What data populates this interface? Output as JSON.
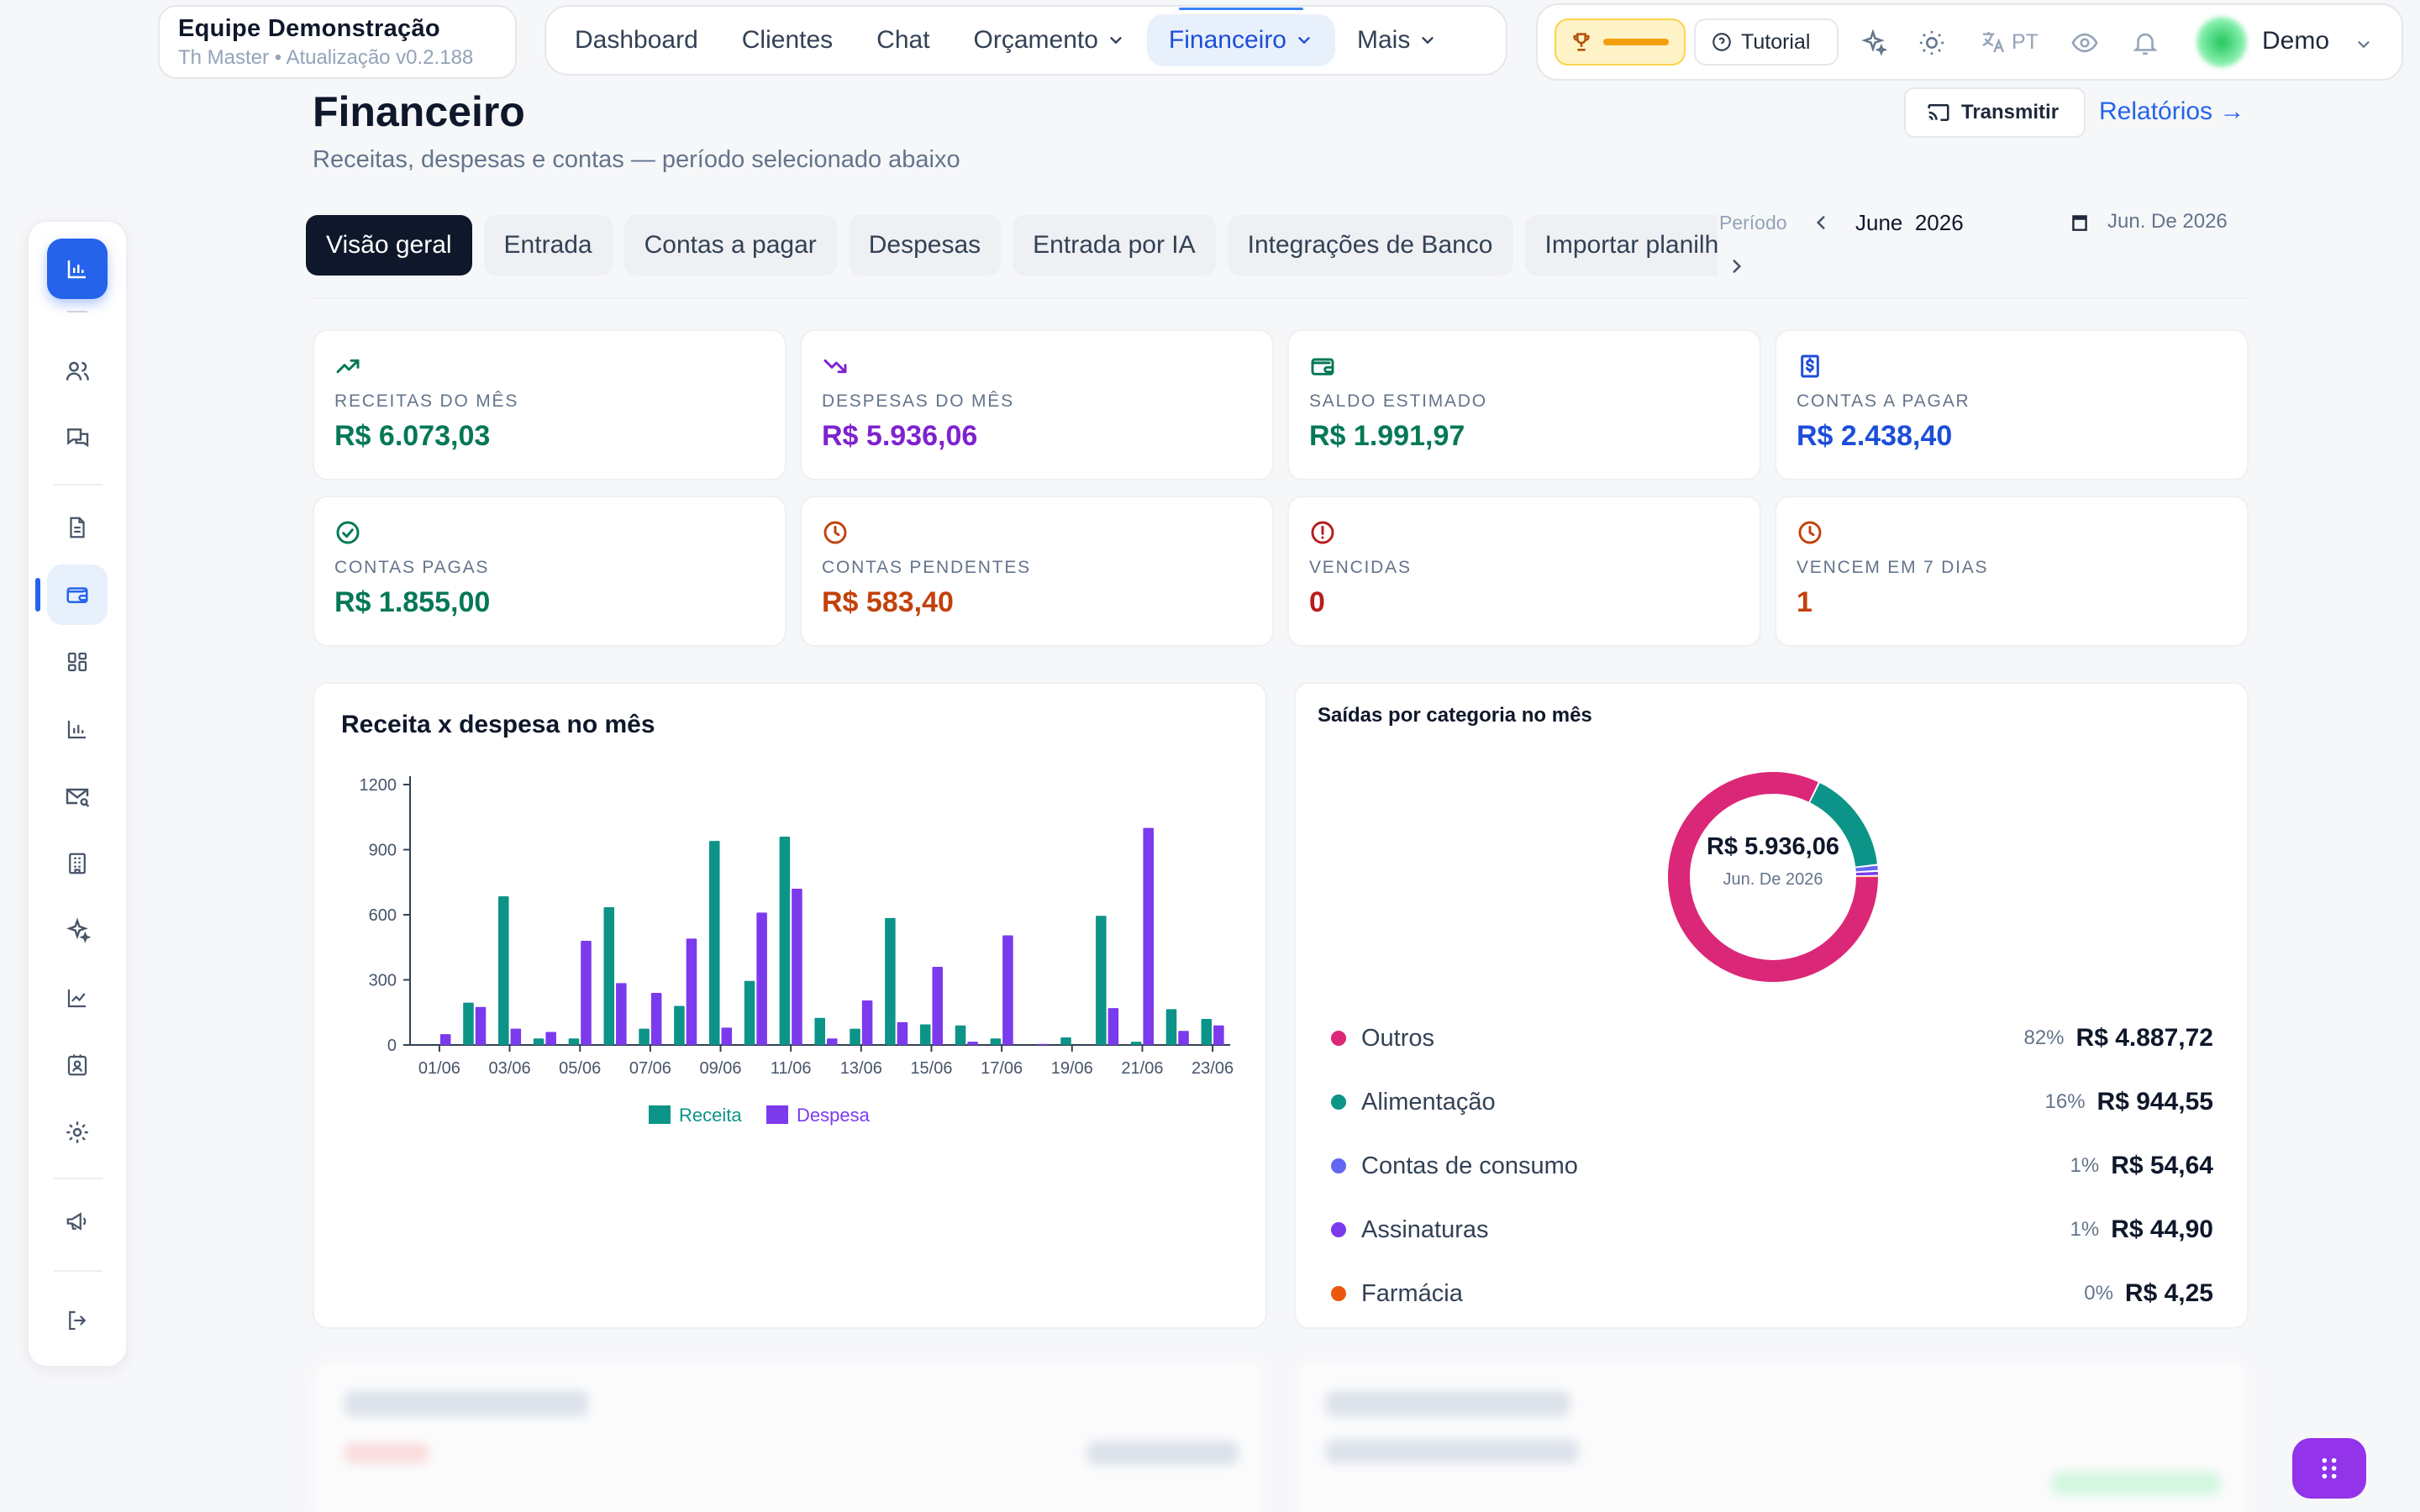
{
  "brand": {
    "name": "Equipe Demonstração",
    "subtitle": "Th Master • Atualização v0.2.188"
  },
  "nav": {
    "items": [
      {
        "label": "Dashboard",
        "dropdown": false
      },
      {
        "label": "Clientes",
        "dropdown": false
      },
      {
        "label": "Chat",
        "dropdown": false
      },
      {
        "label": "Orçamento",
        "dropdown": true
      },
      {
        "label": "Financeiro",
        "dropdown": true,
        "active": true
      },
      {
        "label": "Mais",
        "dropdown": true
      }
    ]
  },
  "toolbar": {
    "tutorial": "Tutorial",
    "lang": "PT",
    "user": "Demo"
  },
  "page": {
    "title": "Financeiro",
    "subtitle": "Receitas, despesas e contas — período selecionado abaixo",
    "transmit": "Transmitir",
    "reports": "Relatórios →"
  },
  "tabs": [
    "Visão geral",
    "Entrada",
    "Contas a pagar",
    "Despesas",
    "Entrada por IA",
    "Integrações de Banco",
    "Importar planilha"
  ],
  "period": {
    "label": "Período",
    "value": "June  2026",
    "date": "Jun. De 2026"
  },
  "stats": [
    {
      "label": "RECEITAS DO MÊS",
      "value": "R$ 6.073,03",
      "color": "#047857",
      "icon": "trending-up-icon"
    },
    {
      "label": "DESPESAS DO MÊS",
      "value": "R$ 5.936,06",
      "color": "#7e22ce",
      "icon": "trending-down-icon"
    },
    {
      "label": "SALDO ESTIMADO",
      "value": "R$ 1.991,97",
      "color": "#047857",
      "icon": "wallet-icon"
    },
    {
      "label": "CONTAS A PAGAR",
      "value": "R$ 2.438,40",
      "color": "#1d4ed8",
      "icon": "receipt-icon"
    },
    {
      "label": "CONTAS PAGAS",
      "value": "R$ 1.855,00",
      "color": "#047857",
      "icon": "check-circle-icon"
    },
    {
      "label": "CONTAS PENDENTES",
      "value": "R$ 583,40",
      "color": "#c2410c",
      "icon": "clock-icon"
    },
    {
      "label": "VENCIDAS",
      "value": "0",
      "color": "#b91c1c",
      "icon": "alert-circle-icon"
    },
    {
      "label": "VENCEM EM 7 DIAS",
      "value": "1",
      "color": "#c2410c",
      "icon": "clock-icon"
    }
  ],
  "chart_data": [
    {
      "type": "bar",
      "title": "Receita x despesa no mês",
      "ylim": [
        0,
        1200
      ],
      "yticks": [
        0,
        300,
        600,
        900,
        1200
      ],
      "categories": [
        "01/06",
        "02/06",
        "03/06",
        "04/06",
        "05/06",
        "06/06",
        "07/06",
        "08/06",
        "09/06",
        "10/06",
        "11/06",
        "12/06",
        "13/06",
        "14/06",
        "15/06",
        "16/06",
        "17/06",
        "18/06",
        "19/06",
        "20/06",
        "21/06",
        "22/06",
        "23/06"
      ],
      "xtick_labels": [
        "01/06",
        "03/06",
        "05/06",
        "07/06",
        "09/06",
        "11/06",
        "13/06",
        "15/06",
        "17/06",
        "19/06",
        "21/06",
        "23/06"
      ],
      "series": [
        {
          "name": "Receita",
          "color": "#0d9488",
          "values": [
            0,
            195,
            685,
            30,
            30,
            635,
            75,
            180,
            940,
            295,
            960,
            125,
            75,
            585,
            95,
            90,
            30,
            0,
            35,
            595,
            15,
            165,
            120
          ]
        },
        {
          "name": "Despesa",
          "color": "#7c3aed",
          "values": [
            50,
            175,
            75,
            60,
            480,
            285,
            240,
            490,
            80,
            610,
            720,
            30,
            205,
            105,
            360,
            15,
            505,
            5,
            0,
            170,
            1000,
            65,
            90
          ]
        }
      ],
      "legend": "bottom"
    },
    {
      "type": "pie",
      "title": "Saídas por categoria no mês",
      "center_value": "R$ 5.936,06",
      "center_label": "Jun. De 2026",
      "slices": [
        {
          "name": "Outros",
          "percent": "82%",
          "pct": 82.34,
          "amount": "R$ 4.887,72",
          "color": "#db2777"
        },
        {
          "name": "Alimentação",
          "percent": "16%",
          "pct": 15.91,
          "amount": "R$ 944,55",
          "color": "#0d9488"
        },
        {
          "name": "Contas de consumo",
          "percent": "1%",
          "pct": 0.92,
          "amount": "R$ 54,64",
          "color": "#6366f1"
        },
        {
          "name": "Assinaturas",
          "percent": "1%",
          "pct": 0.76,
          "amount": "R$ 44,90",
          "color": "#7c3aed"
        },
        {
          "name": "Farmácia",
          "percent": "0%",
          "pct": 0.07,
          "amount": "R$ 4,25",
          "color": "#ea580c"
        }
      ]
    }
  ]
}
